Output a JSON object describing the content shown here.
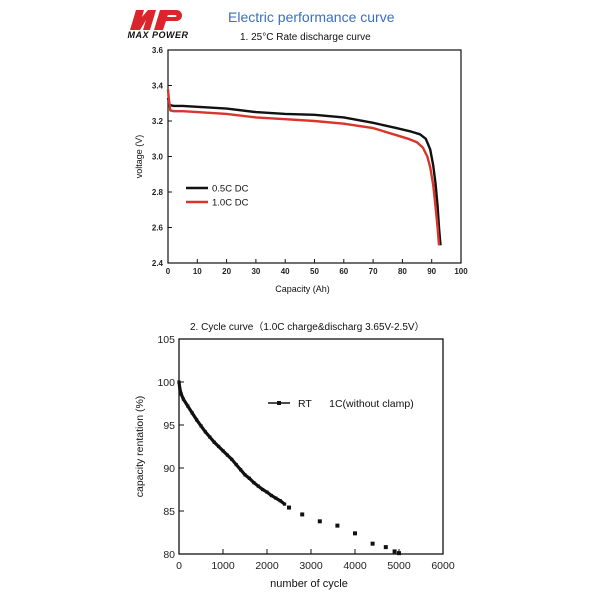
{
  "header": {
    "logo_text": "MAX POWER",
    "page_title": "Electric performance curve"
  },
  "colors": {
    "brand_red": "#d9252c",
    "title_blue": "#3a6fbf",
    "series_black": "#111111",
    "series_red": "#d9352a"
  },
  "chart_data": [
    {
      "type": "line",
      "title": "1. 25°C Rate discharge curve",
      "xlabel": "Capacity (Ah)",
      "ylabel": "voltage (V)",
      "xlim": [
        0,
        100
      ],
      "ylim": [
        2.4,
        3.6
      ],
      "xticks": [
        0,
        10,
        20,
        30,
        40,
        50,
        60,
        70,
        80,
        90,
        100
      ],
      "yticks": [
        2.4,
        2.6,
        2.8,
        3.0,
        3.2,
        3.4,
        3.6
      ],
      "ytick_labels": [
        "2.4",
        "2.6",
        "2.8",
        "3.0",
        "3.2",
        "3.4",
        "3.6"
      ],
      "grid": false,
      "legend": "center-left",
      "series": [
        {
          "name": "0.5C DC",
          "color": "#111111",
          "x": [
            0,
            0.5,
            2,
            5,
            10,
            20,
            30,
            40,
            50,
            60,
            70,
            78,
            83,
            86,
            88,
            89.5,
            90.5,
            91.3,
            92,
            92.5,
            93
          ],
          "y": [
            3.33,
            3.29,
            3.285,
            3.285,
            3.28,
            3.27,
            3.25,
            3.24,
            3.235,
            3.22,
            3.19,
            3.16,
            3.14,
            3.125,
            3.1,
            3.04,
            2.95,
            2.85,
            2.72,
            2.6,
            2.5
          ]
        },
        {
          "name": "1.0C DC",
          "color": "#d9352a",
          "x": [
            0,
            0.3,
            0.8,
            2,
            5,
            10,
            20,
            30,
            40,
            50,
            60,
            70,
            78,
            82,
            85,
            87,
            88.5,
            89.5,
            90.5,
            91.3,
            92,
            92.5
          ],
          "y": [
            3.38,
            3.32,
            3.26,
            3.255,
            3.255,
            3.25,
            3.24,
            3.22,
            3.21,
            3.2,
            3.185,
            3.16,
            3.12,
            3.1,
            3.08,
            3.05,
            3.0,
            2.94,
            2.84,
            2.72,
            2.6,
            2.5
          ]
        }
      ]
    },
    {
      "type": "scatter",
      "title": "2. Cycle curve（1.0C charge&discharg 3.65V-2.5V）",
      "xlabel": "number of cycle",
      "ylabel": "capacity rentation (%)",
      "xlim": [
        0,
        6000
      ],
      "ylim": [
        80,
        105
      ],
      "xticks": [
        0,
        1000,
        2000,
        3000,
        4000,
        5000,
        6000
      ],
      "yticks": [
        80,
        85,
        90,
        95,
        100,
        105
      ],
      "grid": false,
      "legend": "top-right",
      "series": [
        {
          "name": "RT      1C(without clamp)",
          "color": "#111111",
          "dense_x": [
            0,
            20,
            50,
            100,
            200,
            300,
            400,
            500,
            600,
            700,
            800,
            900,
            1000,
            1100,
            1200,
            1300,
            1400,
            1500,
            1600,
            1700,
            1800,
            1900,
            2000,
            2100,
            2200,
            2300,
            2400
          ],
          "dense_y": [
            100,
            99.2,
            98.6,
            98.0,
            97.2,
            96.4,
            95.6,
            94.9,
            94.2,
            93.6,
            93.0,
            92.5,
            92.0,
            91.5,
            91.0,
            90.4,
            89.8,
            89.2,
            88.8,
            88.3,
            87.9,
            87.5,
            87.2,
            86.8,
            86.5,
            86.2,
            85.8
          ],
          "sparse_x": [
            2500,
            2800,
            3200,
            3600,
            4000,
            4400,
            4700,
            4900,
            5000
          ],
          "sparse_y": [
            85.4,
            84.6,
            83.8,
            83.3,
            82.4,
            81.2,
            80.8,
            80.3,
            80.1
          ]
        }
      ]
    }
  ]
}
